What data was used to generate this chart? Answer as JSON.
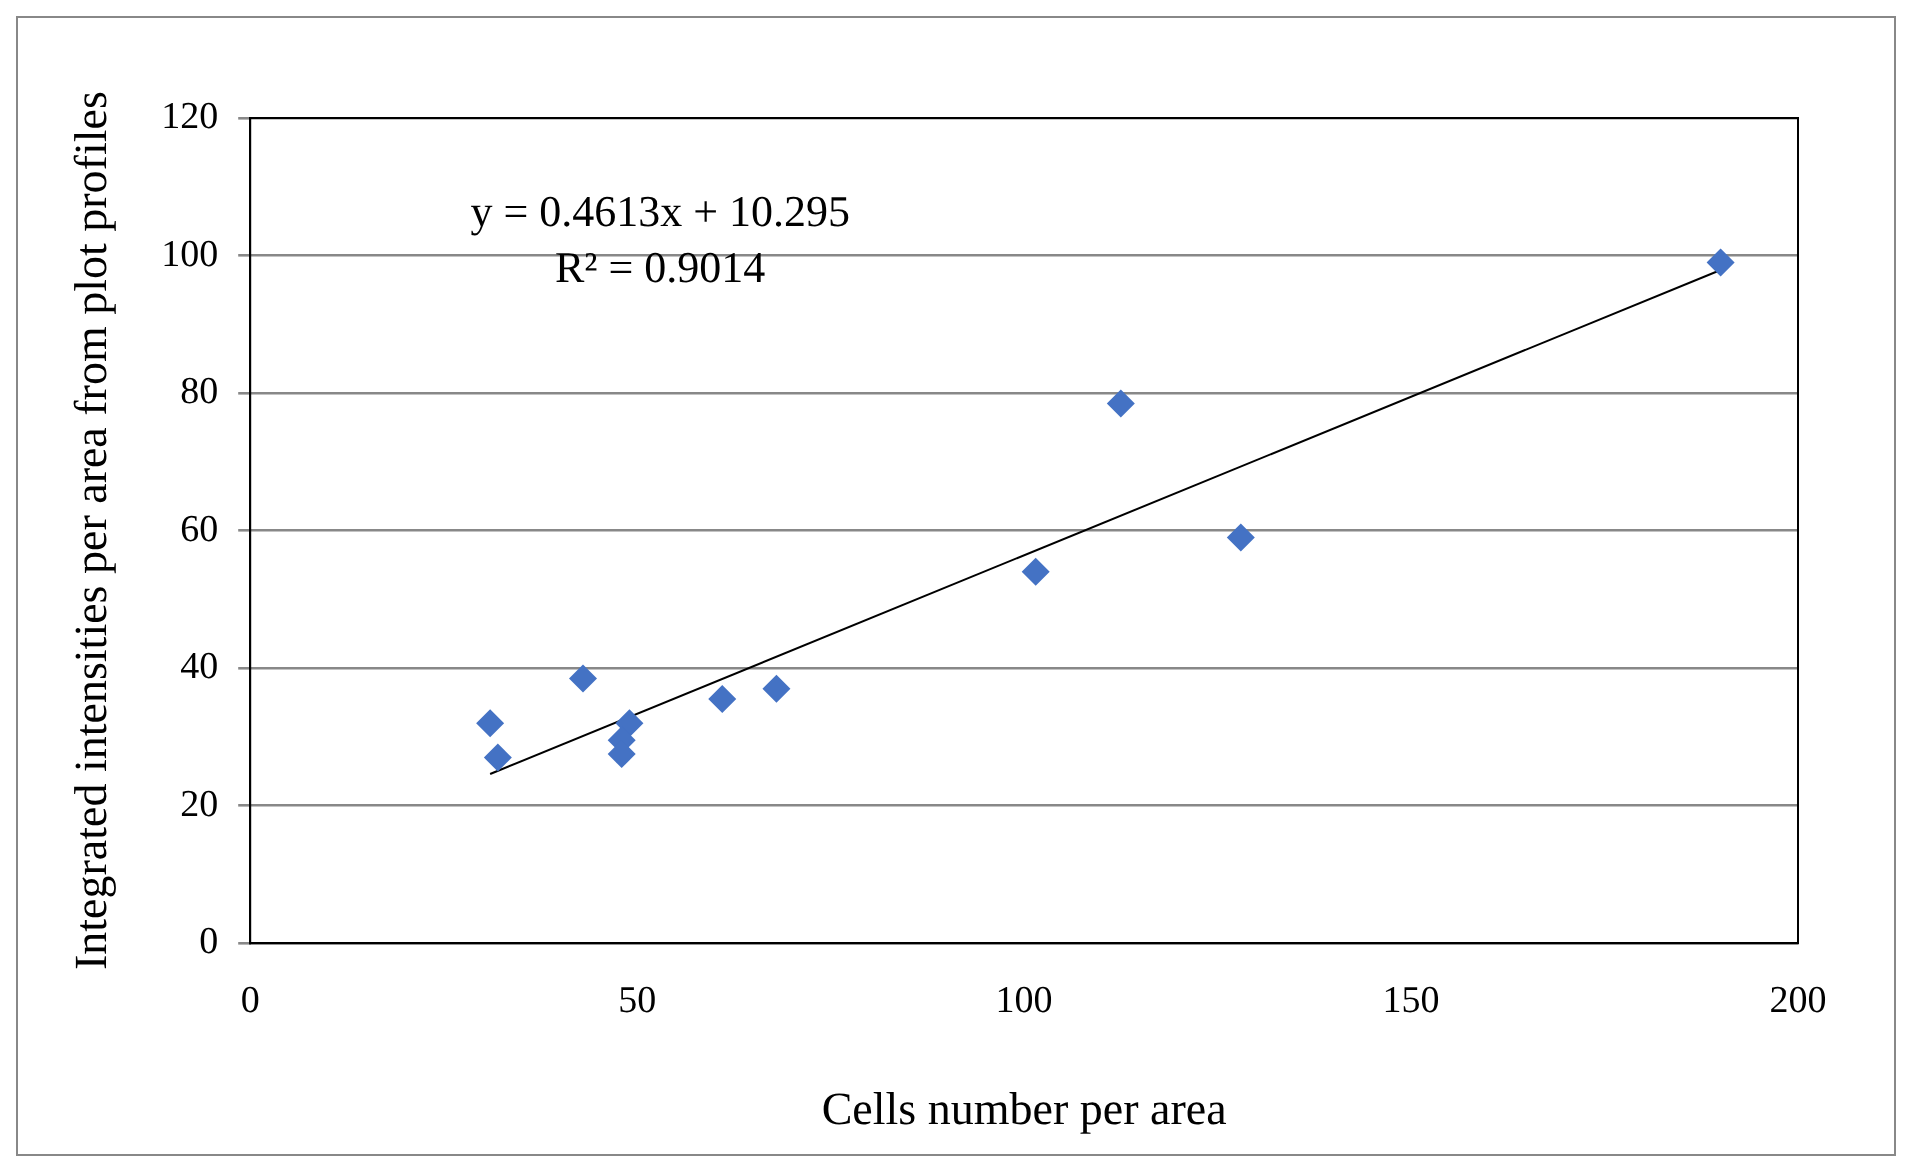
{
  "chart_data": {
    "type": "scatter",
    "xlabel": "Cells number per area",
    "ylabel": "Integrated intensities per area from plot profiles",
    "xlim": [
      0,
      200
    ],
    "xticks": [
      0,
      50,
      100,
      150,
      200
    ],
    "ylim": [
      0,
      120
    ],
    "yticks": [
      0,
      20,
      40,
      60,
      80,
      100,
      120
    ],
    "grid": "y",
    "legend": false,
    "marker": "diamond",
    "series": [
      {
        "type": "scatter",
        "color": "#4472c4",
        "x": [
          31,
          32,
          43,
          49,
          48,
          48,
          61,
          68,
          101.5,
          112.5,
          128,
          190
        ],
        "values": [
          32,
          27,
          38.5,
          32,
          29.5,
          27.5,
          35.5,
          37,
          54,
          78.5,
          59,
          99
        ]
      },
      {
        "type": "line",
        "color": "#000000",
        "x": [
          31,
          190
        ],
        "values": [
          24.6,
          97.9
        ],
        "marker": "none"
      }
    ],
    "annotations": [
      "y = 0.4613x + 10.295",
      "R² = 0.9014"
    ]
  }
}
